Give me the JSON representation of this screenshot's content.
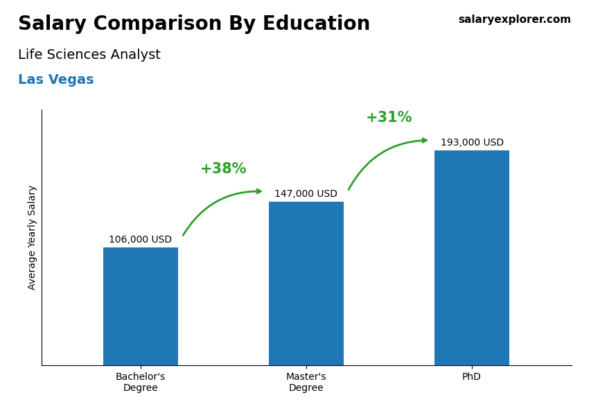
{
  "chart_data": {
    "type": "bar",
    "title": "Salary Comparison By Education",
    "subtitle": "Life Sciences Analyst",
    "location": "Las Vegas",
    "source": "salaryexplorer.com",
    "ylabel": "Average Yearly Salary",
    "categories": [
      "Bachelor's\nDegree",
      "Master's\nDegree",
      "PhD"
    ],
    "values": [
      106000,
      147000,
      193000
    ],
    "value_labels": [
      "106,000 USD",
      "147,000 USD",
      "193,000 USD"
    ],
    "data_labels": true,
    "change_labels": [
      "+38%",
      "+31%"
    ],
    "ylim": [
      0,
      230000
    ],
    "yticks": [],
    "tick_labels": "x",
    "grid": false
  }
}
